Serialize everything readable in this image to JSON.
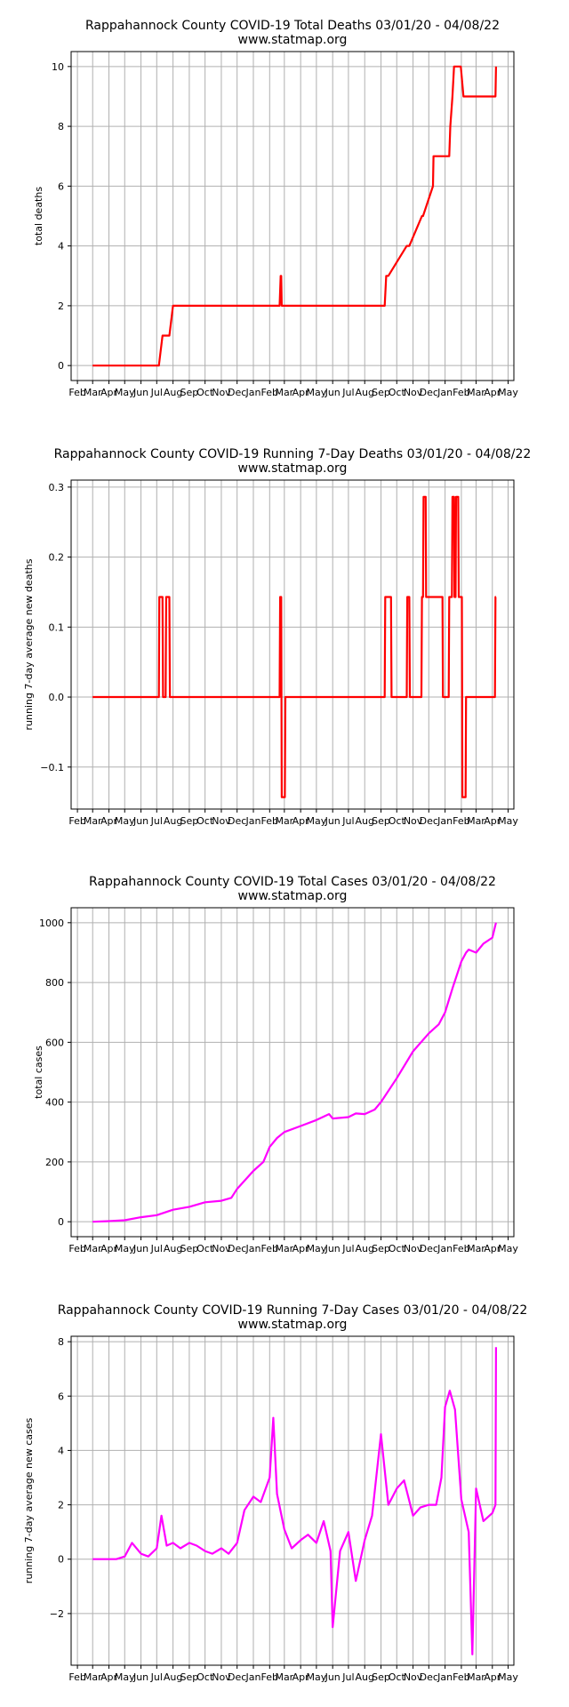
{
  "chart_data": [
    {
      "type": "line",
      "title": "Rappahannock County COVID-19 Total Deaths 03/01/20 - 04/08/22",
      "subtitle": "www.statmap.org",
      "ylabel": "total deaths",
      "xlabel": "",
      "ylim": [
        -0.5,
        10.5
      ],
      "yticks": [
        0,
        2,
        4,
        6,
        8,
        10
      ],
      "color": "#ff0000",
      "grid": true,
      "x": [
        "2020-03-01",
        "2020-07-05",
        "2020-07-12",
        "2020-07-25",
        "2020-08-01",
        "2021-02-20",
        "2021-02-22",
        "2021-02-23",
        "2021-02-24",
        "2021-09-08",
        "2021-09-11",
        "2021-09-15",
        "2021-10-20",
        "2021-10-25",
        "2021-11-18",
        "2021-11-20",
        "2021-12-09",
        "2021-12-10",
        "2022-01-09",
        "2022-01-11",
        "2022-01-15",
        "2022-01-18",
        "2022-01-31",
        "2022-02-05",
        "2022-04-07",
        "2022-04-08"
      ],
      "values": [
        0,
        0,
        1,
        1,
        2,
        2,
        3,
        3,
        2,
        2,
        3,
        3,
        4,
        4,
        5,
        5,
        6,
        7,
        7,
        8,
        9,
        10,
        10,
        9,
        9,
        10
      ]
    },
    {
      "type": "line",
      "title": "Rappahannock County COVID-19 Running 7-Day Deaths 03/01/20 - 04/08/22",
      "subtitle": "www.statmap.org",
      "ylabel": "running 7-day average new deaths",
      "xlabel": "",
      "ylim": [
        -0.16,
        0.31
      ],
      "yticks": [
        -0.1,
        0.0,
        0.1,
        0.2,
        0.3
      ],
      "color": "#ff0000",
      "grid": true,
      "x": [
        "2020-03-01",
        "2020-07-05",
        "2020-07-06",
        "2020-07-12",
        "2020-07-13",
        "2020-07-18",
        "2020-07-19",
        "2020-07-25",
        "2020-07-26",
        "2021-02-20",
        "2021-02-21",
        "2021-02-23",
        "2021-02-24",
        "2021-03-02",
        "2021-03-03",
        "2021-09-08",
        "2021-09-09",
        "2021-09-20",
        "2021-09-21",
        "2021-10-20",
        "2021-10-21",
        "2021-10-25",
        "2021-10-26",
        "2021-11-17",
        "2021-11-18",
        "2021-11-20",
        "2021-11-21",
        "2021-11-25",
        "2021-11-26",
        "2021-12-27",
        "2021-12-28",
        "2022-01-08",
        "2022-01-09",
        "2022-01-14",
        "2022-01-15",
        "2022-01-18",
        "2022-01-19",
        "2022-01-21",
        "2022-01-22",
        "2022-01-26",
        "2022-01-27",
        "2022-02-02",
        "2022-02-03",
        "2022-02-09",
        "2022-02-10",
        "2022-04-06",
        "2022-04-07",
        "2022-04-08"
      ],
      "values": [
        0,
        0,
        0.143,
        0.143,
        0,
        0,
        0.143,
        0.143,
        0,
        0,
        0.143,
        0.143,
        -0.143,
        -0.143,
        0,
        0,
        0.143,
        0.143,
        0,
        0,
        0.143,
        0.143,
        0,
        0,
        0.143,
        0.143,
        0.286,
        0.286,
        0.143,
        0.143,
        0,
        0,
        0.143,
        0.143,
        0.286,
        0.286,
        0.143,
        0.143,
        0.286,
        0.286,
        0.143,
        0.143,
        -0.143,
        -0.143,
        0,
        0,
        0.143,
        0.143
      ]
    },
    {
      "type": "line",
      "title": "Rappahannock County COVID-19 Total Cases 03/01/20 - 04/08/22",
      "subtitle": "www.statmap.org",
      "ylabel": "total cases",
      "xlabel": "",
      "ylim": [
        -50,
        1050
      ],
      "yticks": [
        0,
        200,
        400,
        600,
        800,
        1000
      ],
      "color": "#ff00ff",
      "grid": true,
      "x": [
        "2020-03-01",
        "2020-04-01",
        "2020-05-01",
        "2020-06-01",
        "2020-07-01",
        "2020-08-01",
        "2020-09-01",
        "2020-10-01",
        "2020-11-01",
        "2020-11-20",
        "2020-12-01",
        "2021-01-01",
        "2021-01-20",
        "2021-02-01",
        "2021-02-15",
        "2021-03-01",
        "2021-04-01",
        "2021-05-01",
        "2021-05-25",
        "2021-06-01",
        "2021-07-01",
        "2021-07-15",
        "2021-08-01",
        "2021-08-20",
        "2021-09-01",
        "2021-10-01",
        "2021-11-01",
        "2021-12-01",
        "2021-12-20",
        "2022-01-01",
        "2022-01-15",
        "2022-02-01",
        "2022-02-10",
        "2022-02-15",
        "2022-03-01",
        "2022-03-15",
        "2022-04-01",
        "2022-04-08"
      ],
      "values": [
        0,
        2,
        5,
        15,
        22,
        40,
        50,
        65,
        70,
        80,
        110,
        170,
        200,
        250,
        280,
        300,
        320,
        340,
        360,
        345,
        350,
        362,
        360,
        375,
        400,
        480,
        570,
        630,
        660,
        700,
        780,
        870,
        900,
        910,
        900,
        930,
        950,
        1000
      ]
    },
    {
      "type": "line",
      "title": "Rappahannock County COVID-19 Running 7-Day Cases 03/01/20 - 04/08/22",
      "subtitle": "www.statmap.org",
      "ylabel": "running 7-day average new cases",
      "xlabel": "",
      "ylim": [
        -3.9,
        8.2
      ],
      "yticks": [
        -2,
        0,
        2,
        4,
        6,
        8
      ],
      "color": "#ff00ff",
      "grid": true,
      "x": [
        "2020-03-01",
        "2020-04-15",
        "2020-05-01",
        "2020-05-15",
        "2020-06-01",
        "2020-06-15",
        "2020-07-01",
        "2020-07-10",
        "2020-07-20",
        "2020-08-01",
        "2020-08-15",
        "2020-09-01",
        "2020-09-15",
        "2020-10-01",
        "2020-10-15",
        "2020-11-01",
        "2020-11-15",
        "2020-12-01",
        "2020-12-15",
        "2021-01-01",
        "2021-01-15",
        "2021-02-01",
        "2021-02-08",
        "2021-02-15",
        "2021-03-01",
        "2021-03-15",
        "2021-04-01",
        "2021-04-15",
        "2021-05-01",
        "2021-05-15",
        "2021-05-28",
        "2021-06-01",
        "2021-06-15",
        "2021-07-01",
        "2021-07-15",
        "2021-08-01",
        "2021-08-15",
        "2021-09-01",
        "2021-09-15",
        "2021-10-01",
        "2021-10-15",
        "2021-11-01",
        "2021-11-15",
        "2021-12-01",
        "2021-12-15",
        "2021-12-25",
        "2022-01-01",
        "2022-01-10",
        "2022-01-20",
        "2022-02-01",
        "2022-02-15",
        "2022-02-22",
        "2022-03-01",
        "2022-03-15",
        "2022-04-01",
        "2022-04-07",
        "2022-04-08"
      ],
      "values": [
        0,
        0,
        0.1,
        0.6,
        0.2,
        0.1,
        0.4,
        1.6,
        0.5,
        0.6,
        0.4,
        0.6,
        0.5,
        0.3,
        0.2,
        0.4,
        0.2,
        0.6,
        1.8,
        2.3,
        2.1,
        3.0,
        5.2,
        2.4,
        1.1,
        0.4,
        0.7,
        0.9,
        0.6,
        1.4,
        0.3,
        -2.5,
        0.3,
        1.0,
        -0.8,
        0.7,
        1.6,
        4.6,
        2.0,
        2.6,
        2.9,
        1.6,
        1.9,
        2.0,
        2.0,
        3.0,
        5.6,
        6.2,
        5.5,
        2.2,
        1.0,
        -3.5,
        2.6,
        1.4,
        1.7,
        2.0,
        7.8
      ]
    }
  ],
  "x_axis": {
    "tick_dates": [
      "2020-02-01",
      "2020-03-01",
      "2020-04-01",
      "2020-05-01",
      "2020-06-01",
      "2020-07-01",
      "2020-08-01",
      "2020-09-01",
      "2020-10-01",
      "2020-11-01",
      "2020-12-01",
      "2021-01-01",
      "2021-02-01",
      "2021-03-01",
      "2021-04-01",
      "2021-05-01",
      "2021-06-01",
      "2021-07-01",
      "2021-08-01",
      "2021-09-01",
      "2021-10-01",
      "2021-11-01",
      "2021-12-01",
      "2022-01-01",
      "2022-02-01",
      "2022-03-01",
      "2022-04-01",
      "2022-05-01"
    ],
    "tick_labels": [
      "Feb",
      "Mar",
      "Apr",
      "May",
      "Jun",
      "Jul",
      "Aug",
      "Sep",
      "Oct",
      "Nov",
      "Dec",
      "Jan",
      "Feb",
      "Mar",
      "Apr",
      "May",
      "Jun",
      "Jul",
      "Aug",
      "Sep",
      "Oct",
      "Nov",
      "Dec",
      "Jan",
      "Feb",
      "Mar",
      "Apr",
      "May"
    ]
  }
}
